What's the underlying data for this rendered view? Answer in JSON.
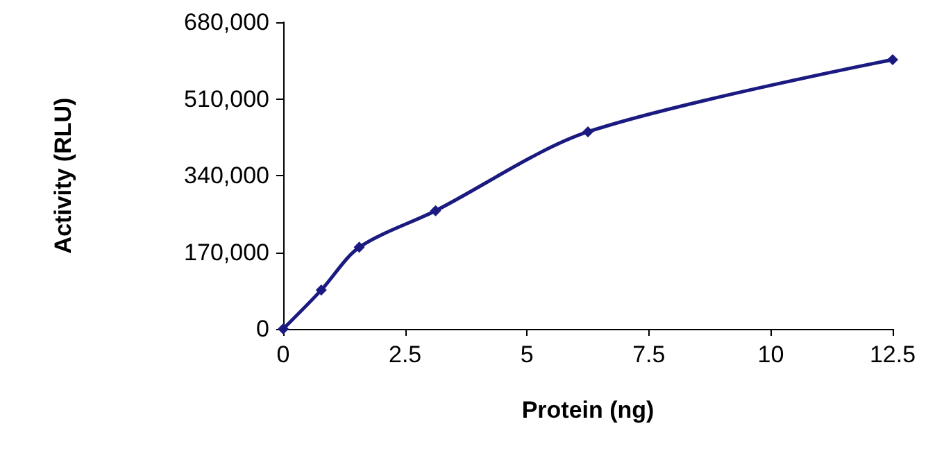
{
  "chart_data": {
    "type": "line",
    "xlabel": "Protein (ng)",
    "ylabel": "Activity (RLU)",
    "x": [
      0,
      0.78,
      1.56,
      3.125,
      6.25,
      12.5
    ],
    "series": [
      {
        "color": "#1a1a80",
        "values": [
          0,
          86000,
          181000,
          262000,
          437000,
          597000
        ]
      }
    ],
    "xlim": [
      0,
      12.5
    ],
    "xticks": [
      0,
      2.5,
      5,
      7.5,
      10,
      12.5
    ],
    "ylim": [
      0,
      680000
    ],
    "yticks": [
      {
        "value": 0,
        "label": "0"
      },
      {
        "value": 170000,
        "label": "170,000"
      },
      {
        "value": 340000,
        "label": "340,000"
      },
      {
        "value": 510000,
        "label": "510,000"
      },
      {
        "value": 680000,
        "label": "680,000"
      }
    ],
    "grid": false,
    "marker": "diamond",
    "line_style": "solid"
  }
}
